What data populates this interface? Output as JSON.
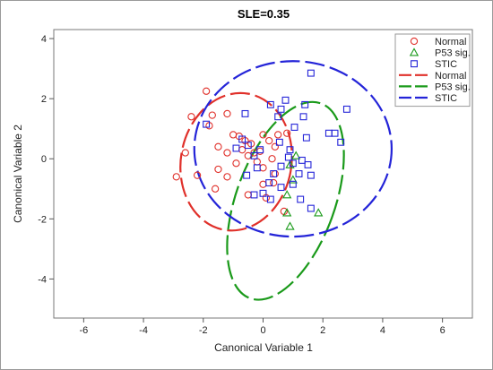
{
  "chart_data": {
    "type": "scatter",
    "title": "SLE=0.35",
    "xlabel": "Canonical Variable 1",
    "ylabel": "Canonical Variable 2",
    "xlim": [
      -7,
      7
    ],
    "ylim": [
      -5.3,
      4.3
    ],
    "xticks": [
      -6,
      -4,
      -2,
      0,
      2,
      4,
      6
    ],
    "yticks": [
      -4,
      -2,
      0,
      2,
      4
    ],
    "grid": false,
    "legend_position": "top-right",
    "series": [
      {
        "name": "Normal",
        "marker": "circle",
        "color": "#e0302a",
        "points": [
          [
            -1.9,
            2.25
          ],
          [
            -1.7,
            1.45
          ],
          [
            -2.4,
            1.4
          ],
          [
            -1.2,
            1.5
          ],
          [
            -1.8,
            1.1
          ],
          [
            -2.6,
            0.2
          ],
          [
            -2.9,
            -0.6
          ],
          [
            -2.2,
            -0.55
          ],
          [
            -1.5,
            -0.35
          ],
          [
            -1.6,
            -1.0
          ],
          [
            -1.2,
            -0.6
          ],
          [
            -0.9,
            -0.15
          ],
          [
            -0.7,
            0.3
          ],
          [
            -0.6,
            0.6
          ],
          [
            -0.5,
            0.1
          ],
          [
            -0.8,
            0.75
          ],
          [
            -0.4,
            0.5
          ],
          [
            -0.3,
            0.2
          ],
          [
            -0.1,
            0.25
          ],
          [
            0.0,
            -0.3
          ],
          [
            -0.2,
            -0.1
          ],
          [
            0.2,
            0.6
          ],
          [
            0.3,
            0.0
          ],
          [
            0.4,
            -0.5
          ],
          [
            0.0,
            0.8
          ],
          [
            0.35,
            -0.8
          ],
          [
            0.7,
            -1.75
          ],
          [
            -0.5,
            -1.2
          ],
          [
            0.0,
            -0.85
          ],
          [
            0.1,
            -1.3
          ],
          [
            -1.2,
            0.2
          ],
          [
            -1.5,
            0.4
          ],
          [
            -1.0,
            0.8
          ],
          [
            0.4,
            0.4
          ],
          [
            0.8,
            0.85
          ],
          [
            0.5,
            0.8
          ]
        ]
      },
      {
        "name": "P53 sig.",
        "marker": "triangle",
        "color": "#1a9a1a",
        "points": [
          [
            0.9,
            -0.2
          ],
          [
            1.0,
            -0.7
          ],
          [
            0.8,
            -1.2
          ],
          [
            0.8,
            -1.8
          ],
          [
            0.9,
            -2.25
          ],
          [
            1.85,
            -1.8
          ],
          [
            1.1,
            0.1
          ]
        ]
      },
      {
        "name": "STIC",
        "marker": "square",
        "color": "#2424d8",
        "points": [
          [
            1.6,
            2.85
          ],
          [
            -1.9,
            1.15
          ],
          [
            -0.6,
            1.5
          ],
          [
            0.25,
            1.8
          ],
          [
            0.75,
            1.95
          ],
          [
            0.5,
            1.4
          ],
          [
            1.4,
            1.8
          ],
          [
            1.35,
            1.4
          ],
          [
            2.8,
            1.65
          ],
          [
            2.4,
            0.85
          ],
          [
            2.6,
            0.55
          ],
          [
            2.2,
            0.85
          ],
          [
            -0.9,
            0.35
          ],
          [
            -0.1,
            0.3
          ],
          [
            -0.3,
            0.1
          ],
          [
            -0.7,
            0.65
          ],
          [
            -0.5,
            0.45
          ],
          [
            0.2,
            -0.8
          ],
          [
            0.35,
            -0.5
          ],
          [
            0.6,
            -0.25
          ],
          [
            0.85,
            0.05
          ],
          [
            1.0,
            -0.15
          ],
          [
            1.3,
            -0.05
          ],
          [
            1.2,
            -0.5
          ],
          [
            1.5,
            -0.2
          ],
          [
            1.6,
            -0.55
          ],
          [
            1.0,
            -0.85
          ],
          [
            0.6,
            -0.95
          ],
          [
            0.0,
            -1.15
          ],
          [
            -0.3,
            -1.2
          ],
          [
            0.25,
            -1.35
          ],
          [
            1.25,
            -1.35
          ],
          [
            1.6,
            -1.65
          ],
          [
            -0.55,
            -0.55
          ],
          [
            1.05,
            1.05
          ],
          [
            0.55,
            0.55
          ],
          [
            0.9,
            0.3
          ],
          [
            -0.2,
            -0.3
          ],
          [
            1.45,
            0.7
          ],
          [
            0.6,
            1.65
          ]
        ]
      }
    ],
    "ellipses": [
      {
        "name": "Normal",
        "color": "#e0302a",
        "cx": -0.9,
        "cy": -0.1,
        "rx": 1.85,
        "ry": 2.3,
        "angle": 10
      },
      {
        "name": "P53 sig.",
        "color": "#1a9a1a",
        "cx": 0.75,
        "cy": -1.4,
        "rx": 1.65,
        "ry": 3.45,
        "angle": 20
      },
      {
        "name": "STIC",
        "color": "#2424d8",
        "cx": 1.0,
        "cy": 0.33,
        "rx": 3.3,
        "ry": 2.92,
        "angle": 0
      }
    ],
    "legend": [
      {
        "label": "Normal",
        "kind": "circle",
        "color": "#e0302a"
      },
      {
        "label": "P53 sig.",
        "kind": "triangle",
        "color": "#1a9a1a"
      },
      {
        "label": "STIC",
        "kind": "square",
        "color": "#2424d8"
      },
      {
        "label": "Normal",
        "kind": "line",
        "color": "#e0302a"
      },
      {
        "label": "P53 sig.",
        "kind": "line",
        "color": "#1a9a1a"
      },
      {
        "label": "STIC",
        "kind": "line",
        "color": "#2424d8"
      }
    ]
  }
}
